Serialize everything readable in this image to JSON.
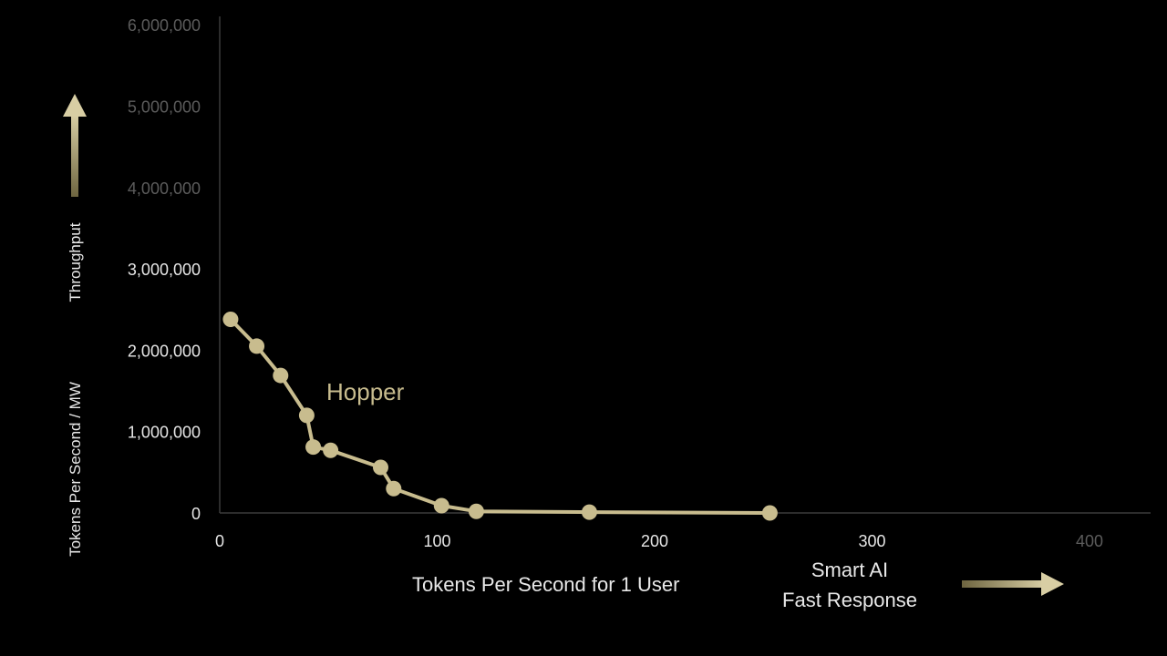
{
  "colors": {
    "background": "#000000",
    "series": "#c8bc8e",
    "tick_bright": "#e6e6e6",
    "tick_dim": "#5c5c5c",
    "axis_line": "#3a3a3a",
    "arrow": "#c8bc8e"
  },
  "chart_data": {
    "type": "line",
    "title": "",
    "xlabel": "Tokens Per Second for 1 User",
    "ylabel_top": "Throughput",
    "ylabel_bottom": "Tokens Per Second / MW",
    "xlim": [
      0,
      430
    ],
    "ylim": [
      0,
      6000000
    ],
    "xticks": [
      0,
      100,
      200,
      300,
      400
    ],
    "xtick_labels": [
      "0",
      "100",
      "200",
      "300",
      "400"
    ],
    "yticks": [
      0,
      1000000,
      2000000,
      3000000,
      4000000,
      5000000,
      6000000
    ],
    "ytick_labels": [
      "0",
      "1,000,000",
      "2,000,000",
      "3,000,000",
      "4,000,000",
      "5,000,000",
      "6,000,000"
    ],
    "grid": false,
    "series": [
      {
        "name": "Hopper",
        "x": [
          5,
          17,
          28,
          40,
          43,
          51,
          74,
          80,
          102,
          118,
          170,
          253
        ],
        "y": [
          2380000,
          2050000,
          1690000,
          1200000,
          810000,
          770000,
          560000,
          300000,
          90000,
          20000,
          10000,
          0
        ]
      }
    ],
    "annotations": {
      "x_arrow_caption_line1": "Smart AI",
      "x_arrow_caption_line2": "Fast Response"
    }
  }
}
